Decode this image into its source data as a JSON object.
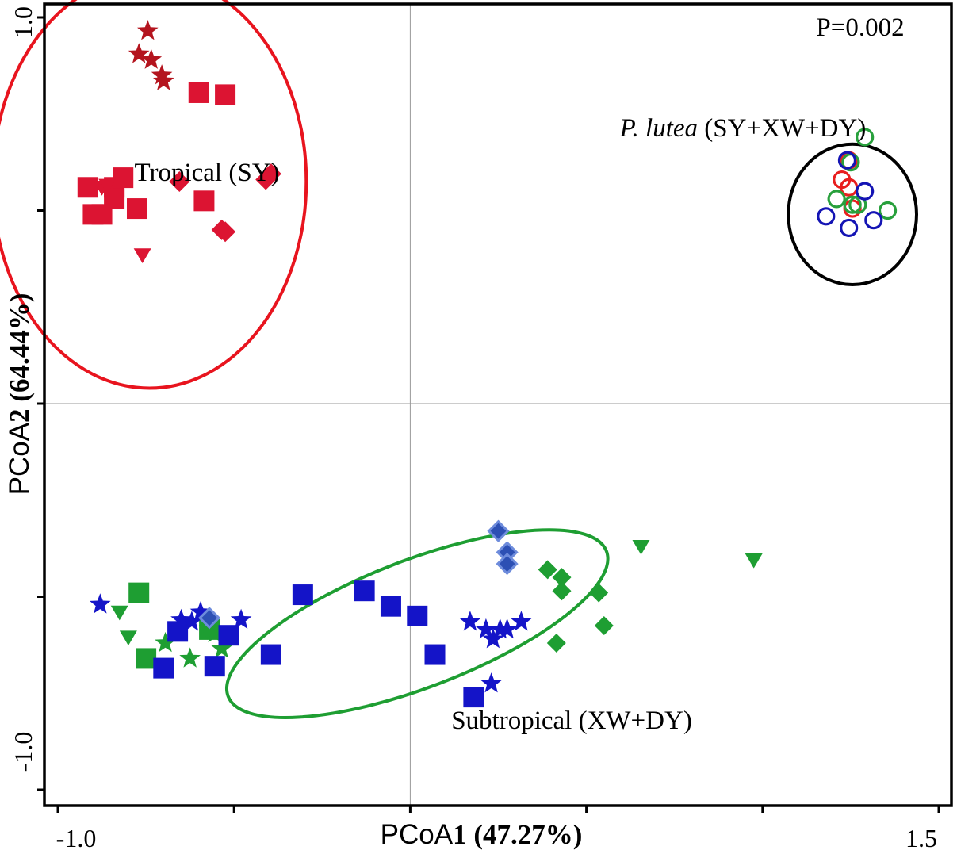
{
  "chart_data": {
    "type": "scatter",
    "title": "",
    "xlabel": {
      "prefix": "PCoA",
      "bold": "1 (47.27%)"
    },
    "ylabel": {
      "prefix": "PCoA",
      "bold": "2 (64.44%)"
    },
    "xlim": [
      -1.0,
      1.5
    ],
    "ylim": [
      -1.0,
      1.0
    ],
    "x_tick_labels": [
      "-1.0",
      "1.5"
    ],
    "y_tick_labels": [
      "1.0",
      "-1.0"
    ],
    "x_minor_ticks": [
      -1.0,
      -0.5,
      0.0,
      0.5,
      1.0,
      1.5
    ],
    "y_minor_ticks": [
      -1.0,
      -0.5,
      0.0,
      0.5,
      1.0
    ],
    "annotations": {
      "p_value": "P=0.002",
      "tropical": "Tropical (SY)",
      "subtropical": "Subtropical (XW+DY)",
      "plutea_italic": "P. lutea",
      "plutea_rest": " (SY+XW+DY)"
    },
    "colors": {
      "tropical_red": "#dc1432",
      "star_dark_red": "#b4141e",
      "ellipse_red": "#e8141e",
      "green": "#1e9e32",
      "blue": "#1414c8",
      "diamond_blue_fill": "#2d50b4",
      "diamond_blue_edge": "#6e8cdc",
      "circle_red": "#e81e1e",
      "circle_green": "#28a03c",
      "circle_blue": "#1414b4",
      "black": "#000000"
    },
    "ellipses": [
      {
        "name": "tropical-ellipse",
        "cx": -0.74,
        "cy": 0.575,
        "rx": 0.445,
        "ry": 0.535,
        "angle": 0,
        "color": "ellipse_red"
      },
      {
        "name": "subtropical-ellipse",
        "cx": 0.02,
        "cy": -0.57,
        "rx": 0.575,
        "ry": 0.165,
        "angle": -21,
        "color": "green"
      },
      {
        "name": "p-lutea-ellipse",
        "cx": 1.255,
        "cy": 0.49,
        "rx": 0.182,
        "ry": 0.182,
        "angle": 0,
        "color": "black"
      }
    ],
    "series": [
      {
        "name": "Tropical SY stars",
        "marker": "star",
        "fill": "star_dark_red",
        "size": 13,
        "x": [
          -0.745,
          -0.77,
          -0.735,
          -0.705,
          -0.7
        ],
        "y": [
          0.965,
          0.905,
          0.89,
          0.85,
          0.835
        ]
      },
      {
        "name": "Tropical SY squares",
        "marker": "square",
        "fill": "tropical_red",
        "size": 13,
        "x": [
          -0.915,
          -0.9,
          -0.875,
          -0.84,
          -0.815,
          -0.84,
          -0.775,
          -0.585,
          -0.6,
          -0.525
        ],
        "y": [
          0.56,
          0.49,
          0.49,
          0.56,
          0.585,
          0.53,
          0.505,
          0.525,
          0.805,
          0.8
        ]
      },
      {
        "name": "Tropical SY diamonds",
        "marker": "diamond",
        "fill": "tropical_red",
        "size": 13,
        "x": [
          -0.655,
          -0.535,
          -0.41,
          -0.395,
          -0.525
        ],
        "y": [
          0.575,
          0.45,
          0.58,
          0.595,
          0.445
        ]
      },
      {
        "name": "Tropical SY triangles",
        "marker": "triangle-down",
        "fill": "tropical_red",
        "size": 11,
        "x": [
          -0.875,
          -0.86,
          -0.845,
          -0.76
        ],
        "y": [
          0.56,
          0.565,
          0.54,
          0.385
        ]
      },
      {
        "name": "Subtropical green squares",
        "marker": "square",
        "fill": "green",
        "size": 13,
        "x": [
          -0.77,
          -0.75,
          -0.57
        ],
        "y": [
          -0.49,
          -0.66,
          -0.585
        ]
      },
      {
        "name": "Subtropical green stars",
        "marker": "star",
        "fill": "green",
        "size": 13,
        "x": [
          -0.695,
          -0.625,
          -0.555,
          -0.535
        ],
        "y": [
          -0.62,
          -0.66,
          -0.595,
          -0.635
        ]
      },
      {
        "name": "Subtropical green triangles",
        "marker": "triangle-down",
        "fill": "green",
        "size": 11,
        "x": [
          -0.825,
          -0.8,
          -0.575,
          -0.565,
          0.655,
          0.975
        ],
        "y": [
          -0.54,
          -0.605,
          -0.59,
          -0.57,
          -0.37,
          -0.405
        ]
      },
      {
        "name": "Subtropical green diamonds",
        "marker": "diamond",
        "fill": "green",
        "size": 12,
        "x": [
          0.39,
          0.43,
          0.43,
          0.415,
          0.55,
          0.535
        ],
        "y": [
          -0.43,
          -0.485,
          -0.45,
          -0.62,
          -0.575,
          -0.49
        ]
      },
      {
        "name": "Subtropical blue squares",
        "marker": "square",
        "fill": "blue",
        "size": 13,
        "x": [
          -0.7,
          -0.555,
          -0.66,
          -0.515,
          -0.395,
          -0.305,
          -0.13,
          -0.055,
          0.02,
          0.07,
          0.18
        ],
        "y": [
          -0.685,
          -0.68,
          -0.59,
          -0.6,
          -0.65,
          -0.495,
          -0.485,
          -0.525,
          -0.55,
          -0.65,
          -0.76
        ]
      },
      {
        "name": "Subtropical blue stars",
        "marker": "star",
        "fill": "blue",
        "size": 13,
        "x": [
          -0.88,
          -0.65,
          -0.62,
          -0.595,
          -0.48,
          0.215,
          0.17,
          0.235,
          0.275,
          0.315,
          0.255,
          0.23
        ],
        "y": [
          -0.52,
          -0.56,
          -0.565,
          -0.54,
          -0.56,
          -0.585,
          -0.565,
          -0.61,
          -0.585,
          -0.565,
          -0.585,
          -0.725
        ]
      },
      {
        "name": "Subtropical blue diamonds",
        "marker": "diamond",
        "fill": "diamond_blue_fill",
        "size": 12,
        "x": [
          -0.57,
          0.25,
          0.275,
          0.275
        ],
        "y": [
          -0.555,
          -0.33,
          -0.385,
          -0.415
        ]
      },
      {
        "name": "P. lutea red circles",
        "marker": "circle",
        "fill": "circle_red",
        "size": 10,
        "x": [
          1.245,
          1.225,
          1.245,
          1.255
        ],
        "y": [
          0.63,
          0.58,
          0.56,
          0.505
        ]
      },
      {
        "name": "P. lutea green circles",
        "marker": "circle",
        "fill": "circle_green",
        "size": 10,
        "x": [
          1.29,
          1.25,
          1.255,
          1.21,
          1.27,
          1.355
        ],
        "y": [
          0.69,
          0.625,
          0.515,
          0.53,
          0.515,
          0.5
        ]
      },
      {
        "name": "P. lutea blue circles",
        "marker": "circle",
        "fill": "circle_blue",
        "size": 10,
        "x": [
          1.24,
          1.29,
          1.18,
          1.315,
          1.245
        ],
        "y": [
          0.63,
          0.55,
          0.485,
          0.475,
          0.455
        ]
      }
    ]
  }
}
